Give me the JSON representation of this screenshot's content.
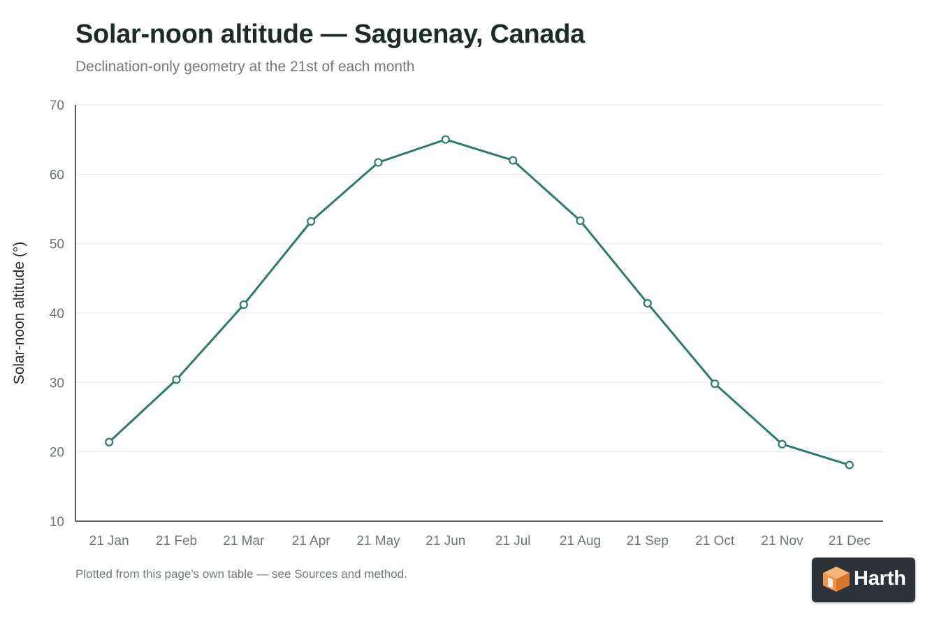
{
  "chart_data": {
    "type": "line",
    "title": "Solar-noon altitude — Saguenay, Canada",
    "subtitle": "Declination-only geometry at the 21st of each month",
    "xlabel": "",
    "ylabel": "Solar-noon altitude (°)",
    "ylim": [
      10,
      70
    ],
    "yticks": [
      10,
      20,
      30,
      40,
      50,
      60,
      70
    ],
    "grid": true,
    "categories": [
      "21 Jan",
      "21 Feb",
      "21 Mar",
      "21 Apr",
      "21 May",
      "21 Jun",
      "21 Jul",
      "21 Aug",
      "21 Sep",
      "21 Oct",
      "21 Nov",
      "21 Dec"
    ],
    "series": [
      {
        "values": [
          21.4,
          30.4,
          41.2,
          53.2,
          61.7,
          65.0,
          62.0,
          53.3,
          41.4,
          29.8,
          21.1,
          18.1
        ]
      }
    ],
    "line_color": "#2e7a6e"
  },
  "footnote": "Plotted from this page's own table — see Sources and method.",
  "logo": {
    "text": "Harth",
    "icon": "harth-cube-icon"
  }
}
